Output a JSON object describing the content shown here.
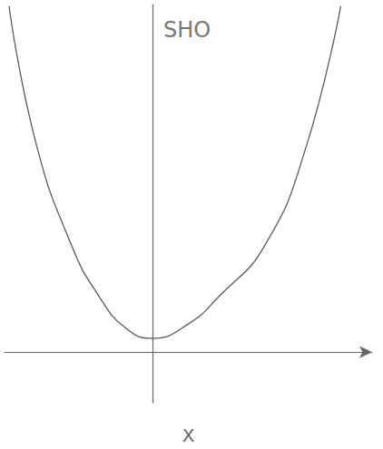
{
  "chart_data": {
    "type": "line",
    "title": "SHO",
    "x_label": "X",
    "x": [
      -1.6,
      -1.3,
      -0.9,
      -0.6,
      -0.3,
      0,
      0.4,
      0.75,
      1.25,
      1.7,
      2.1
    ],
    "values": [
      4.3,
      2.6,
      1.32,
      0.7,
      0.3,
      0.17,
      0.35,
      0.7,
      1.32,
      2.5,
      4.3
    ],
    "color": "#5a5a5a",
    "xlim": [
      -1.65,
      2.45
    ],
    "ylim": [
      -0.63,
      4.32
    ],
    "grid": false,
    "tick_labels": false,
    "line_style": "solid",
    "marker": "none"
  }
}
